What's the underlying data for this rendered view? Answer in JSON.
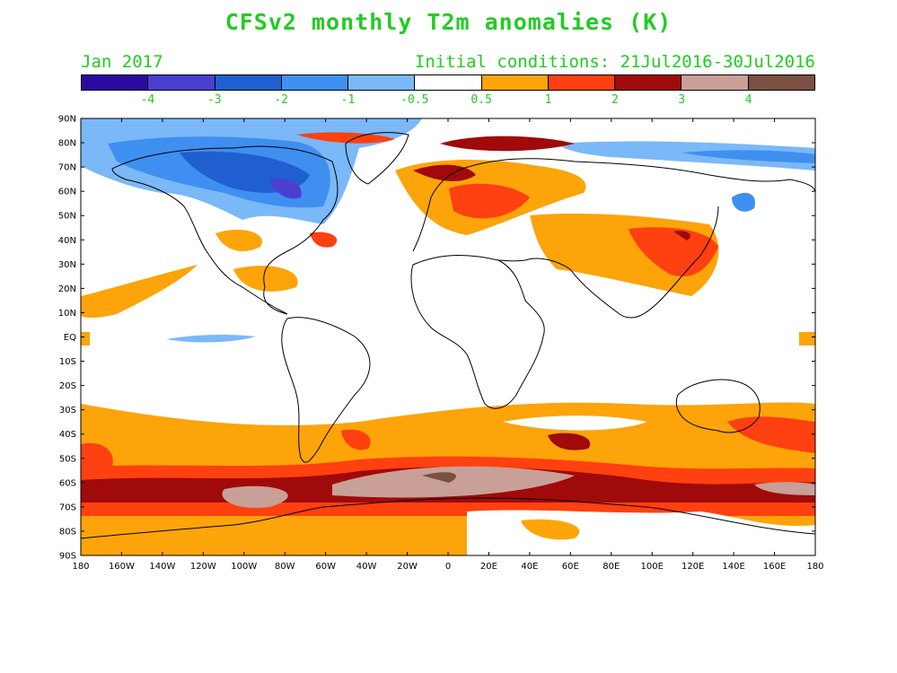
{
  "header": {
    "title": "CFSv2 monthly T2m anomalies (K)",
    "valid_month": "Jan 2017",
    "initial_conditions": "Initial conditions: 21Jul2016-30Jul2016"
  },
  "colorbar": {
    "colors": [
      "#2a0aa0",
      "#4a3fd0",
      "#1f5fd0",
      "#3f8ff0",
      "#7ab8f8",
      "#ffffff",
      "#fca40a",
      "#ff4010",
      "#a00a0a",
      "#c8a098",
      "#7a5040"
    ],
    "labels": [
      "-4",
      "-3",
      "-2",
      "-1",
      "-0.5",
      "0.5",
      "1",
      "2",
      "3",
      "4"
    ]
  },
  "axes": {
    "lat_labels": [
      "90N",
      "80N",
      "70N",
      "60N",
      "50N",
      "40N",
      "30N",
      "20N",
      "10N",
      "EQ",
      "10S",
      "20S",
      "30S",
      "40S",
      "50S",
      "60S",
      "70S",
      "80S",
      "90S"
    ],
    "lon_labels": [
      "180",
      "160W",
      "140W",
      "120W",
      "100W",
      "80W",
      "60W",
      "40W",
      "20W",
      "0",
      "20E",
      "40E",
      "60E",
      "80E",
      "100E",
      "120E",
      "140E",
      "160E",
      "180"
    ]
  }
}
